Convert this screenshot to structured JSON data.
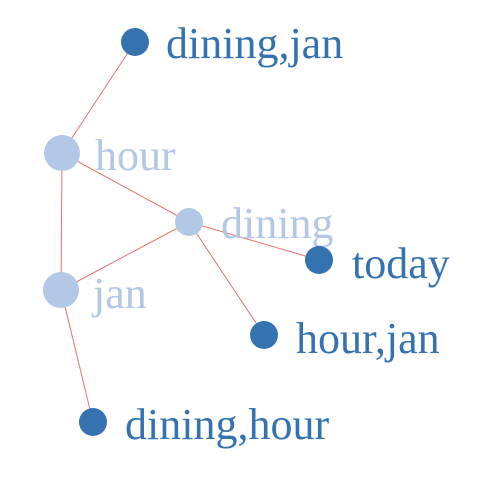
{
  "colors": {
    "primary": "#3572b0",
    "secondary": "#b3c7e6",
    "edge": "#e8736b"
  },
  "nodes": [
    {
      "id": "dining_jan",
      "label": "dining,jan",
      "tier": "primary"
    },
    {
      "id": "hour",
      "label": "hour",
      "tier": "secondary"
    },
    {
      "id": "dining",
      "label": "dining",
      "tier": "secondary"
    },
    {
      "id": "today",
      "label": "today",
      "tier": "primary"
    },
    {
      "id": "jan",
      "label": "jan",
      "tier": "secondary"
    },
    {
      "id": "hour_jan",
      "label": "hour,jan",
      "tier": "primary"
    },
    {
      "id": "dining_hour",
      "label": "dining,hour",
      "tier": "primary"
    }
  ],
  "edges": [
    {
      "source": "hour",
      "target": "dining_jan"
    },
    {
      "source": "hour",
      "target": "dining"
    },
    {
      "source": "hour",
      "target": "jan"
    },
    {
      "source": "dining",
      "target": "jan"
    },
    {
      "source": "dining",
      "target": "today"
    },
    {
      "source": "dining",
      "target": "hour_jan"
    },
    {
      "source": "jan",
      "target": "dining_hour"
    }
  ]
}
